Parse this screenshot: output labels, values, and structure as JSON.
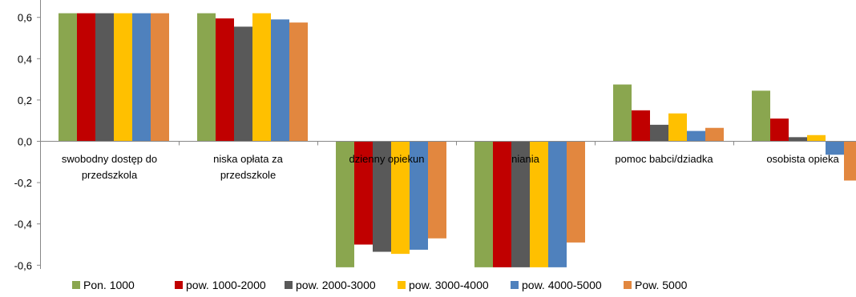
{
  "chart_data": {
    "type": "bar",
    "ylim": [
      -0.6,
      0.6
    ],
    "yticks": [
      "0,6",
      "0,4",
      "0,2",
      "0,0",
      "-0,2",
      "-0,4",
      "-0,6"
    ],
    "ytick_values": [
      0.6,
      0.4,
      0.2,
      0.0,
      -0.2,
      -0.4,
      -0.6
    ],
    "categories": [
      [
        "swobodny dostęp do",
        "przedszkola"
      ],
      [
        "niska opłata za",
        "przedszkole"
      ],
      [
        "dzienny opiekun"
      ],
      [
        "niania"
      ],
      [
        "pomoc babci/dziadka"
      ],
      [
        "osobista opieka"
      ]
    ],
    "series": [
      {
        "name": "Pon. 1000",
        "color": "#8AA64F",
        "values": [
          0.62,
          0.62,
          -0.61,
          -0.61,
          0.275,
          0.245
        ]
      },
      {
        "name": "pow. 1000-2000",
        "color": "#C00000",
        "values": [
          0.62,
          0.595,
          -0.5,
          -0.61,
          0.15,
          0.11
        ]
      },
      {
        "name": "pow. 2000-3000",
        "color": "#595959",
        "values": [
          0.62,
          0.555,
          -0.535,
          -0.61,
          0.08,
          0.02
        ]
      },
      {
        "name": "pow. 3000-4000",
        "color": "#FFC000",
        "values": [
          0.62,
          0.62,
          -0.545,
          -0.61,
          0.135,
          0.03
        ]
      },
      {
        "name": "pow. 4000-5000",
        "color": "#4F81BD",
        "values": [
          0.62,
          0.59,
          -0.525,
          -0.61,
          0.05,
          -0.065
        ]
      },
      {
        "name": "Pow. 5000",
        "color": "#E2873F",
        "values": [
          0.62,
          0.575,
          -0.47,
          -0.49,
          0.065,
          -0.19
        ]
      }
    ],
    "grid": false,
    "legend": "bottom"
  }
}
